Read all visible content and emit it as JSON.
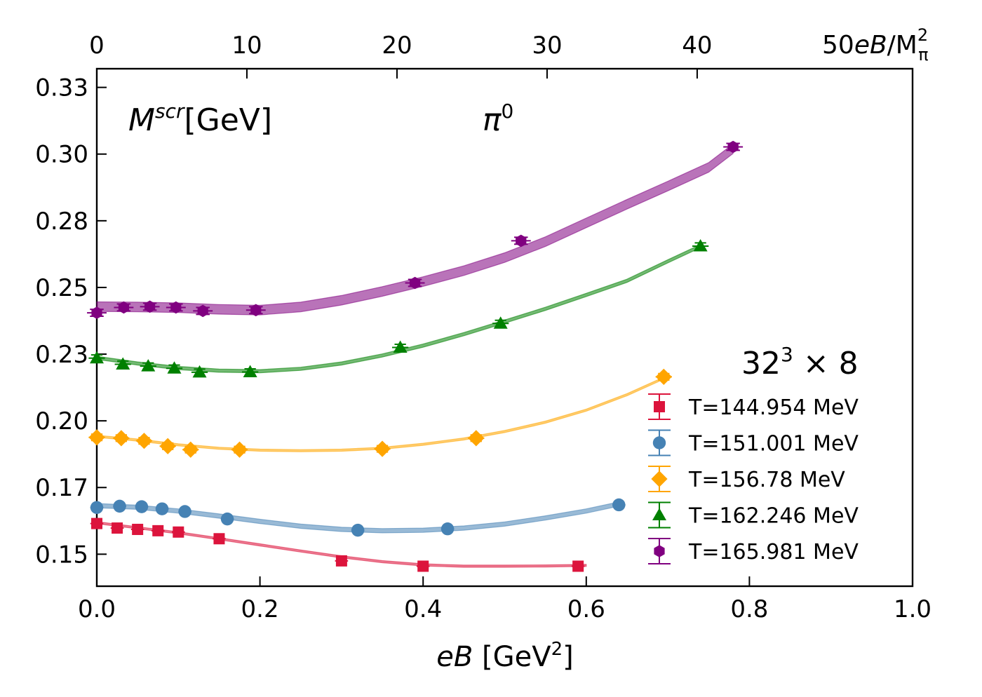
{
  "chart_data": {
    "type": "scatter",
    "xlabel_pre": "eB",
    "xlabel_post": " [GeV",
    "xlabel_sup": "2",
    "xlabel_end": "]",
    "ylabel": "",
    "xlim": [
      0.0,
      1.0
    ],
    "ylim": [
      0.138,
      0.332
    ],
    "x_ticks": [
      0.0,
      0.2,
      0.4,
      0.6,
      0.8,
      1.0
    ],
    "x_tick_labels": [
      "0.0",
      "0.2",
      "0.4",
      "0.6",
      "0.8",
      "1.0"
    ],
    "y_ticks": [
      0.15,
      0.175,
      0.2,
      0.225,
      0.25,
      0.275,
      0.3,
      0.325
    ],
    "y_tick_labels": [
      "0.15",
      "0.17",
      "0.20",
      "0.23",
      "0.25",
      "0.28",
      "0.30",
      "0.33"
    ],
    "top_axis_ticks": [
      0,
      10,
      20,
      30,
      40
    ],
    "top_axis_label_pre": "50",
    "top_axis_label_it": "eB",
    "top_axis_label_post": "/M",
    "top_axis_label_sub": "π",
    "top_axis_label_sup": "2",
    "top_axis_scale": 54.35,
    "annotation_mscr_base": "M",
    "annotation_mscr_sup": "scr",
    "annotation_mscr_tail": "[GeV]",
    "annotation_particle_base": "π",
    "annotation_particle_sup": "0",
    "annotation_lattice_base": "32",
    "annotation_lattice_sup": "3",
    "annotation_lattice_tail": " × 8",
    "legend_position": "lower-right",
    "series": [
      {
        "name": "T=144.954 MeV",
        "color": "#dc143c",
        "marker": "square",
        "band_width": 0.0004,
        "x": [
          0.0,
          0.025,
          0.05,
          0.075,
          0.1,
          0.15,
          0.3,
          0.4,
          0.59
        ],
        "y": [
          0.1615,
          0.1598,
          0.1593,
          0.1588,
          0.1583,
          0.1558,
          0.1475,
          0.1455,
          0.1455
        ],
        "xerr": 0.008,
        "yerr": 0.0012,
        "fit_x": [
          0.0,
          0.05,
          0.1,
          0.15,
          0.2,
          0.25,
          0.3,
          0.35,
          0.4,
          0.45,
          0.5,
          0.55,
          0.6
        ],
        "fit_y": [
          0.1618,
          0.1599,
          0.158,
          0.1558,
          0.1535,
          0.1512,
          0.149,
          0.1472,
          0.146,
          0.1455,
          0.1455,
          0.1456,
          0.1458
        ]
      },
      {
        "name": "T=151.001 MeV",
        "color": "#4682b4",
        "marker": "circle",
        "band_width": 0.0008,
        "x": [
          0.0,
          0.028,
          0.055,
          0.08,
          0.108,
          0.16,
          0.32,
          0.43,
          0.64
        ],
        "y": [
          0.1675,
          0.168,
          0.1678,
          0.167,
          0.166,
          0.1632,
          0.159,
          0.1595,
          0.1685
        ],
        "xerr": 0.008,
        "yerr": 0.0012,
        "fit_x": [
          0.0,
          0.05,
          0.1,
          0.15,
          0.2,
          0.25,
          0.3,
          0.35,
          0.4,
          0.45,
          0.5,
          0.55,
          0.6,
          0.64
        ],
        "fit_y": [
          0.1682,
          0.1676,
          0.1662,
          0.1643,
          0.1623,
          0.1605,
          0.1593,
          0.1588,
          0.159,
          0.1598,
          0.1613,
          0.1636,
          0.1662,
          0.1688
        ]
      },
      {
        "name": "T=156.78 MeV",
        "color": "#ffa500",
        "marker": "diamond",
        "band_width": 0.0004,
        "x": [
          0.0,
          0.03,
          0.058,
          0.087,
          0.115,
          0.175,
          0.35,
          0.465,
          0.695
        ],
        "y": [
          0.1938,
          0.1935,
          0.1925,
          0.1905,
          0.1892,
          0.1892,
          0.1895,
          0.1935,
          0.2165
        ],
        "xerr": 0.01,
        "yerr": 0.0012,
        "fit_x": [
          0.0,
          0.05,
          0.1,
          0.15,
          0.2,
          0.25,
          0.3,
          0.35,
          0.4,
          0.45,
          0.5,
          0.55,
          0.6,
          0.65,
          0.695
        ],
        "fit_y": [
          0.1942,
          0.1928,
          0.191,
          0.1897,
          0.189,
          0.1888,
          0.189,
          0.1897,
          0.1912,
          0.1932,
          0.196,
          0.1995,
          0.204,
          0.2098,
          0.216
        ]
      },
      {
        "name": "T=162.246 MeV",
        "color": "#008000",
        "marker": "triangle",
        "band_width": 0.0006,
        "x": [
          0.0,
          0.032,
          0.063,
          0.095,
          0.126,
          0.188,
          0.372,
          0.495,
          0.74
        ],
        "y": [
          0.2235,
          0.2212,
          0.2205,
          0.2197,
          0.2182,
          0.2183,
          0.2275,
          0.2365,
          0.2655
        ],
        "xerr": 0.01,
        "yerr": 0.0012,
        "fit_x": [
          0.0,
          0.05,
          0.1,
          0.15,
          0.2,
          0.25,
          0.3,
          0.35,
          0.4,
          0.45,
          0.5,
          0.55,
          0.6,
          0.65,
          0.7,
          0.74
        ],
        "fit_y": [
          0.2236,
          0.2215,
          0.2198,
          0.2188,
          0.2186,
          0.2195,
          0.2215,
          0.2245,
          0.2282,
          0.2325,
          0.2372,
          0.242,
          0.2472,
          0.2525,
          0.2598,
          0.2655
        ]
      },
      {
        "name": "T=165.981 MeV",
        "color": "#800080",
        "marker": "hexagon",
        "band_width": 0.0018,
        "x": [
          0.0,
          0.033,
          0.065,
          0.097,
          0.13,
          0.195,
          0.39,
          0.52,
          0.78
        ],
        "y": [
          0.2405,
          0.2425,
          0.2428,
          0.2425,
          0.2412,
          0.2415,
          0.2517,
          0.2675,
          0.3027
        ],
        "xerr": 0.012,
        "yerr": 0.0013,
        "fit_x": [
          0.0,
          0.05,
          0.1,
          0.15,
          0.2,
          0.25,
          0.3,
          0.35,
          0.4,
          0.45,
          0.5,
          0.55,
          0.6,
          0.65,
          0.7,
          0.75,
          0.78
        ],
        "fit_y": [
          0.2428,
          0.2427,
          0.2424,
          0.2418,
          0.2415,
          0.2427,
          0.2452,
          0.2485,
          0.2522,
          0.2563,
          0.2612,
          0.2672,
          0.2742,
          0.2812,
          0.288,
          0.295,
          0.302
        ]
      }
    ]
  }
}
